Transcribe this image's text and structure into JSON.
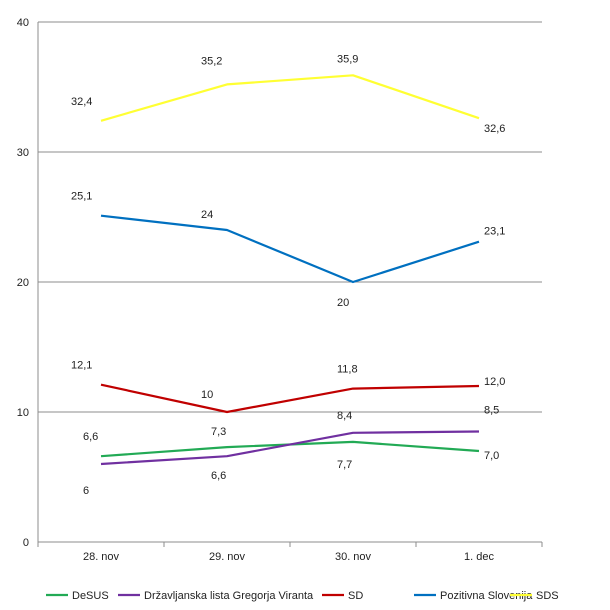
{
  "chart_data": {
    "type": "line",
    "categories": [
      "28. nov",
      "29. nov",
      "30. nov",
      "1. dec"
    ],
    "ylim": [
      0,
      40
    ],
    "yticks": [
      0,
      10,
      20,
      30,
      40
    ],
    "grid": true,
    "legend_position": "bottom",
    "series": [
      {
        "name": "DeSUS",
        "color": "#22aa55",
        "values": [
          6.6,
          7.3,
          7.7,
          7.0
        ],
        "labels": [
          "6,6",
          "7,3",
          "7,7",
          "7,0"
        ]
      },
      {
        "name": "Državljanska lista Gregorja Viranta",
        "color": "#7030a0",
        "values": [
          6,
          6.6,
          8.4,
          8.5
        ],
        "labels": [
          "6",
          "6,6",
          "8,4",
          "8,5"
        ]
      },
      {
        "name": "SD",
        "color": "#c00000",
        "values": [
          12.1,
          10,
          11.8,
          12.0
        ],
        "labels": [
          "12,1",
          "10",
          "11,8",
          "12,0"
        ]
      },
      {
        "name": "Pozitivna Slovenija",
        "color": "#0070c0",
        "values": [
          25.1,
          24,
          20,
          23.1
        ],
        "labels": [
          "25,1",
          "24",
          "20",
          "23,1"
        ]
      },
      {
        "name": "SDS",
        "color": "#ffff33",
        "values": [
          32.4,
          35.2,
          35.9,
          32.6
        ],
        "labels": [
          "32,4",
          "35,2",
          "35,9",
          "32,6"
        ]
      }
    ]
  }
}
